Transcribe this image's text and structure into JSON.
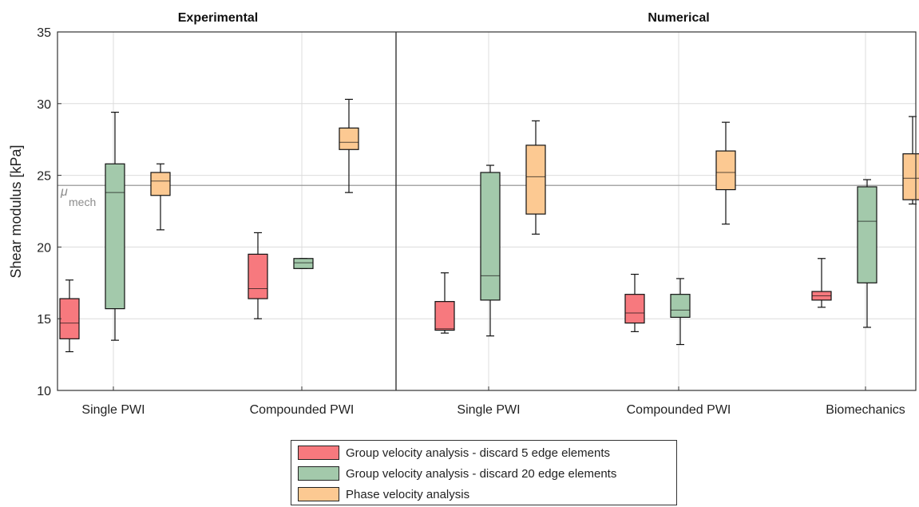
{
  "chart_data": {
    "type": "box",
    "panels": [
      {
        "title": "Experimental",
        "categories": [
          "Single PWI",
          "Compounded PWI"
        ]
      },
      {
        "title": "Numerical",
        "categories": [
          "Single PWI",
          "Compounded PWI",
          "Biomechanics"
        ]
      }
    ],
    "ylabel": "Shear modulus [kPa]",
    "ylim": [
      10,
      35
    ],
    "yticks": [
      10,
      15,
      20,
      25,
      30,
      35
    ],
    "grid": true,
    "reference_line": {
      "value": 24.3,
      "label": "μ",
      "label_sub": "mech"
    },
    "series": [
      {
        "name": "Group velocity analysis - discard 5 edge elements",
        "color": "#f7797e",
        "boxes": [
          {
            "panel": 0,
            "category": "Single PWI",
            "whisker_low": 12.7,
            "q1": 13.6,
            "median": 14.7,
            "q3": 16.4,
            "whisker_high": 17.7
          },
          {
            "panel": 0,
            "category": "Compounded PWI",
            "whisker_low": 15.0,
            "q1": 16.4,
            "median": 17.1,
            "q3": 19.5,
            "whisker_high": 21.0
          },
          {
            "panel": 1,
            "category": "Single PWI",
            "whisker_low": 14.0,
            "q1": 14.2,
            "median": 14.3,
            "q3": 16.2,
            "whisker_high": 18.2
          },
          {
            "panel": 1,
            "category": "Compounded PWI",
            "whisker_low": 14.1,
            "q1": 14.7,
            "median": 15.4,
            "q3": 16.7,
            "whisker_high": 18.1
          },
          {
            "panel": 1,
            "category": "Biomechanics",
            "whisker_low": 15.8,
            "q1": 16.3,
            "median": 16.6,
            "q3": 16.9,
            "whisker_high": 19.2
          }
        ]
      },
      {
        "name": "Group velocity analysis - discard 20 edge elements",
        "color": "#a3c9ab",
        "boxes": [
          {
            "panel": 0,
            "category": "Single PWI",
            "whisker_low": 13.5,
            "q1": 15.7,
            "median": 23.8,
            "q3": 25.8,
            "whisker_high": 29.4
          },
          {
            "panel": 0,
            "category": "Compounded PWI",
            "whisker_low": 18.5,
            "q1": 18.5,
            "median": 18.9,
            "q3": 19.2,
            "whisker_high": 19.2
          },
          {
            "panel": 1,
            "category": "Single PWI",
            "whisker_low": 13.8,
            "q1": 16.3,
            "median": 18.0,
            "q3": 25.2,
            "whisker_high": 25.7
          },
          {
            "panel": 1,
            "category": "Compounded PWI",
            "whisker_low": 13.2,
            "q1": 15.1,
            "median": 15.6,
            "q3": 16.7,
            "whisker_high": 17.8
          },
          {
            "panel": 1,
            "category": "Biomechanics",
            "whisker_low": 14.4,
            "q1": 17.5,
            "median": 21.8,
            "q3": 24.2,
            "whisker_high": 24.7
          }
        ]
      },
      {
        "name": "Phase velocity analysis",
        "color": "#fcc992",
        "boxes": [
          {
            "panel": 0,
            "category": "Single PWI",
            "whisker_low": 21.2,
            "q1": 23.6,
            "median": 24.6,
            "q3": 25.2,
            "whisker_high": 25.8
          },
          {
            "panel": 0,
            "category": "Compounded PWI",
            "whisker_low": 23.8,
            "q1": 26.8,
            "median": 27.3,
            "q3": 28.3,
            "whisker_high": 30.3
          },
          {
            "panel": 1,
            "category": "Single PWI",
            "whisker_low": 20.9,
            "q1": 22.3,
            "median": 24.9,
            "q3": 27.1,
            "whisker_high": 28.8
          },
          {
            "panel": 1,
            "category": "Compounded PWI",
            "whisker_low": 21.6,
            "q1": 24.0,
            "median": 25.2,
            "q3": 26.7,
            "whisker_high": 28.7
          },
          {
            "panel": 1,
            "category": "Biomechanics",
            "whisker_low": 23.0,
            "q1": 23.3,
            "median": 24.8,
            "q3": 26.5,
            "whisker_high": 29.1
          }
        ]
      }
    ],
    "legend_position": "bottom-center"
  }
}
